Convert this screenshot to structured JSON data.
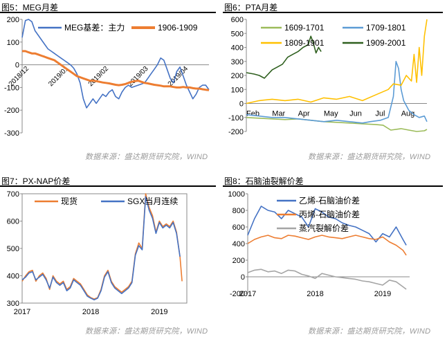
{
  "chart_data": [
    {
      "id": "fig5",
      "type": "line",
      "title": "图5：MEG月差",
      "source": "数据来源：盛达期货研究院，WIND",
      "ylim": [
        -300,
        200
      ],
      "yticks": [
        -300,
        -200,
        -100,
        0,
        100,
        200
      ],
      "xticks": [
        "2018/12",
        "2019/01",
        "2019/02",
        "2019/03",
        "2019/04"
      ],
      "series": [
        {
          "name": "MEG基差：主力",
          "color": "#4472C4",
          "values": [
            120,
            195,
            200,
            190,
            150,
            130,
            110,
            90,
            70,
            60,
            50,
            40,
            30,
            20,
            10,
            0,
            -15,
            -40,
            -80,
            -150,
            -190,
            -170,
            -150,
            -170,
            -150,
            -130,
            -140,
            -120,
            -110,
            -140,
            -150,
            -120,
            -100,
            -90,
            -100,
            -95,
            -90,
            -85,
            -80,
            -60,
            -40,
            -20,
            0,
            30,
            20,
            -20,
            -60,
            -80,
            -30,
            -10,
            -50,
            -90,
            -120,
            -150,
            -130,
            -100,
            -90,
            -90,
            -110
          ]
        },
        {
          "name": "1906-1909",
          "color": "#ED7D31",
          "values": [
            60,
            60,
            55,
            50,
            50,
            45,
            40,
            35,
            30,
            25,
            20,
            10,
            0,
            -10,
            -20,
            -30,
            -40,
            -50,
            -55,
            -60,
            -65,
            -70,
            -70,
            -72,
            -75,
            -78,
            -80,
            -82,
            -85,
            -88,
            -90,
            -88,
            -85,
            -80,
            -75,
            -72,
            -70,
            -75,
            -80,
            -82,
            -85,
            -88,
            -90,
            -92,
            -95,
            -95,
            -95,
            -98,
            -100,
            -100,
            -98,
            -100,
            -100,
            -103,
            -105,
            -105,
            -108,
            -110,
            -112
          ]
        }
      ]
    },
    {
      "id": "fig6",
      "type": "line",
      "title": "图6：PTA月差",
      "source": "数据来源：盛达期货研究院，WIND",
      "ylim": [
        -200,
        600
      ],
      "yticks": [
        -200,
        -100,
        0,
        100,
        200,
        300,
        400,
        500,
        600
      ],
      "xticks": [
        "Feb",
        "Mar",
        "Apr",
        "May",
        "Jun",
        "Jul",
        "Aug"
      ],
      "xrange": [
        0,
        7
      ],
      "series": [
        {
          "name": "1609-1701",
          "color": "#9BBB59",
          "x": [
            0,
            0.5,
            1,
            1.5,
            2,
            2.5,
            3,
            3.5,
            4,
            4.5,
            5,
            5.3,
            5.6,
            6,
            6.3,
            6.6,
            6.9,
            7
          ],
          "values": [
            -100,
            -105,
            -110,
            -115,
            -110,
            -120,
            -130,
            -135,
            -140,
            -145,
            -150,
            -155,
            -190,
            -180,
            -190,
            -200,
            -195,
            -185
          ]
        },
        {
          "name": "1709-1801",
          "color": "#5B9BD5",
          "x": [
            0,
            0.5,
            1,
            1.5,
            2,
            2.5,
            3,
            3.5,
            4,
            4.5,
            4.8,
            5.2,
            5.5,
            5.7,
            5.8,
            5.9,
            6,
            6.1,
            6.3,
            6.5,
            6.7,
            6.9,
            7
          ],
          "values": [
            -80,
            -90,
            -100,
            -100,
            -110,
            -120,
            -130,
            -120,
            -130,
            -140,
            -130,
            -120,
            -100,
            50,
            300,
            250,
            100,
            20,
            -50,
            -80,
            -100,
            -90,
            -130
          ]
        },
        {
          "name": "1809-1901",
          "color": "#FFC000",
          "x": [
            0,
            0.5,
            1,
            1.5,
            2,
            2.5,
            3,
            3.5,
            4,
            4.5,
            5,
            5.5,
            5.7,
            6,
            6.2,
            6.4,
            6.5,
            6.6,
            6.7,
            6.8,
            6.9,
            7
          ],
          "values": [
            0,
            20,
            30,
            20,
            30,
            10,
            40,
            30,
            50,
            20,
            60,
            100,
            140,
            130,
            200,
            160,
            350,
            150,
            400,
            200,
            480,
            600
          ]
        },
        {
          "name": "1909-2001",
          "color": "#2E5F1E",
          "x": [
            0,
            0.3,
            0.5,
            0.7,
            1,
            1.2,
            1.4,
            1.6,
            1.8,
            2,
            2.2,
            2.4,
            2.5,
            2.6,
            2.7,
            2.8,
            2.9
          ],
          "values": [
            220,
            210,
            200,
            180,
            240,
            260,
            280,
            330,
            350,
            370,
            400,
            420,
            480,
            430,
            360,
            400,
            370
          ]
        }
      ]
    },
    {
      "id": "fig7",
      "type": "line",
      "title": "图7：PX-NAP价差",
      "source": "数据来源：盛达期货研究院，WIND",
      "ylim": [
        300,
        700
      ],
      "yticks": [
        300,
        400,
        500,
        600,
        700
      ],
      "xticks": [
        "2017",
        "2018",
        "2019"
      ],
      "xrange": [
        0,
        2.4
      ],
      "series": [
        {
          "name": "现货",
          "color": "#ED7D31",
          "x": [
            0,
            0.05,
            0.1,
            0.15,
            0.2,
            0.25,
            0.3,
            0.35,
            0.4,
            0.45,
            0.5,
            0.55,
            0.6,
            0.65,
            0.7,
            0.75,
            0.8,
            0.85,
            0.9,
            0.95,
            1,
            1.05,
            1.1,
            1.15,
            1.2,
            1.25,
            1.3,
            1.35,
            1.4,
            1.45,
            1.5,
            1.55,
            1.6,
            1.65,
            1.7,
            1.75,
            1.8,
            1.85,
            1.9,
            1.95,
            2,
            2.05,
            2.1,
            2.15,
            2.2,
            2.25,
            2.3,
            2.33
          ],
          "values": [
            380,
            400,
            415,
            420,
            380,
            400,
            410,
            390,
            350,
            400,
            380,
            370,
            380,
            350,
            360,
            390,
            380,
            370,
            350,
            330,
            320,
            315,
            320,
            350,
            400,
            420,
            380,
            360,
            350,
            340,
            350,
            360,
            380,
            480,
            520,
            500,
            700,
            650,
            620,
            560,
            600,
            580,
            590,
            580,
            600,
            560,
            470,
            380
          ]
        },
        {
          "name": "SGX当月连续",
          "color": "#4472C4",
          "x": [
            0,
            0.05,
            0.1,
            0.15,
            0.2,
            0.25,
            0.3,
            0.35,
            0.4,
            0.45,
            0.5,
            0.55,
            0.6,
            0.65,
            0.7,
            0.75,
            0.8,
            0.85,
            0.9,
            0.95,
            1,
            1.05,
            1.1,
            1.15,
            1.2,
            1.25,
            1.3,
            1.35,
            1.4,
            1.45,
            1.5,
            1.55,
            1.6,
            1.65,
            1.7,
            1.75,
            1.8,
            1.85,
            1.9,
            1.95,
            2,
            2.05,
            2.1,
            2.15,
            2.2,
            2.25,
            2.3
          ],
          "values": [
            385,
            395,
            410,
            415,
            385,
            395,
            405,
            385,
            355,
            395,
            375,
            365,
            375,
            345,
            355,
            385,
            375,
            365,
            345,
            325,
            318,
            312,
            318,
            345,
            395,
            415,
            375,
            355,
            345,
            335,
            345,
            355,
            375,
            475,
            510,
            495,
            690,
            640,
            610,
            555,
            595,
            575,
            585,
            575,
            595,
            555,
            470
          ]
        }
      ]
    },
    {
      "id": "fig8",
      "type": "line",
      "title": "图8：石脑油裂解价差",
      "source": "数据来源：盛达期货研究院，WIND",
      "ylim": [
        -200,
        1000
      ],
      "yticks": [
        -200,
        0,
        200,
        400,
        600,
        800,
        1000
      ],
      "xticks": [
        "2017",
        "2018",
        "2019"
      ],
      "xrange": [
        0,
        2.4
      ],
      "series": [
        {
          "name": "乙烯-石脑油价差",
          "color": "#4472C4",
          "x": [
            0,
            0.1,
            0.2,
            0.3,
            0.4,
            0.5,
            0.6,
            0.7,
            0.8,
            0.9,
            1,
            1.1,
            1.2,
            1.3,
            1.4,
            1.5,
            1.6,
            1.7,
            1.8,
            1.9,
            2,
            2.1,
            2.2,
            2.3,
            2.35
          ],
          "values": [
            500,
            700,
            850,
            800,
            780,
            700,
            800,
            760,
            720,
            600,
            820,
            780,
            720,
            700,
            650,
            620,
            600,
            560,
            520,
            420,
            520,
            480,
            600,
            450,
            380
          ]
        },
        {
          "name": "丙烯-石脑油价差",
          "color": "#ED7D31",
          "x": [
            0,
            0.1,
            0.2,
            0.3,
            0.4,
            0.5,
            0.6,
            0.7,
            0.8,
            0.9,
            1,
            1.1,
            1.2,
            1.3,
            1.4,
            1.5,
            1.6,
            1.7,
            1.8,
            1.9,
            2,
            2.1,
            2.2,
            2.3,
            2.35
          ],
          "values": [
            400,
            450,
            480,
            500,
            470,
            460,
            500,
            490,
            470,
            450,
            480,
            500,
            480,
            470,
            460,
            480,
            500,
            480,
            460,
            450,
            480,
            420,
            380,
            320,
            260
          ]
        },
        {
          "name": "蒸汽裂解价差",
          "color": "#A5A5A5",
          "x": [
            0,
            0.1,
            0.2,
            0.3,
            0.4,
            0.5,
            0.6,
            0.7,
            0.8,
            0.9,
            1,
            1.1,
            1.2,
            1.3,
            1.4,
            1.5,
            1.6,
            1.7,
            1.8,
            1.9,
            2,
            2.1,
            2.2,
            2.3,
            2.35
          ],
          "values": [
            50,
            80,
            90,
            60,
            70,
            40,
            80,
            70,
            30,
            10,
            -20,
            40,
            20,
            0,
            -10,
            -20,
            -30,
            -50,
            -60,
            -80,
            -100,
            -40,
            -60,
            -120,
            -150
          ]
        }
      ]
    }
  ]
}
